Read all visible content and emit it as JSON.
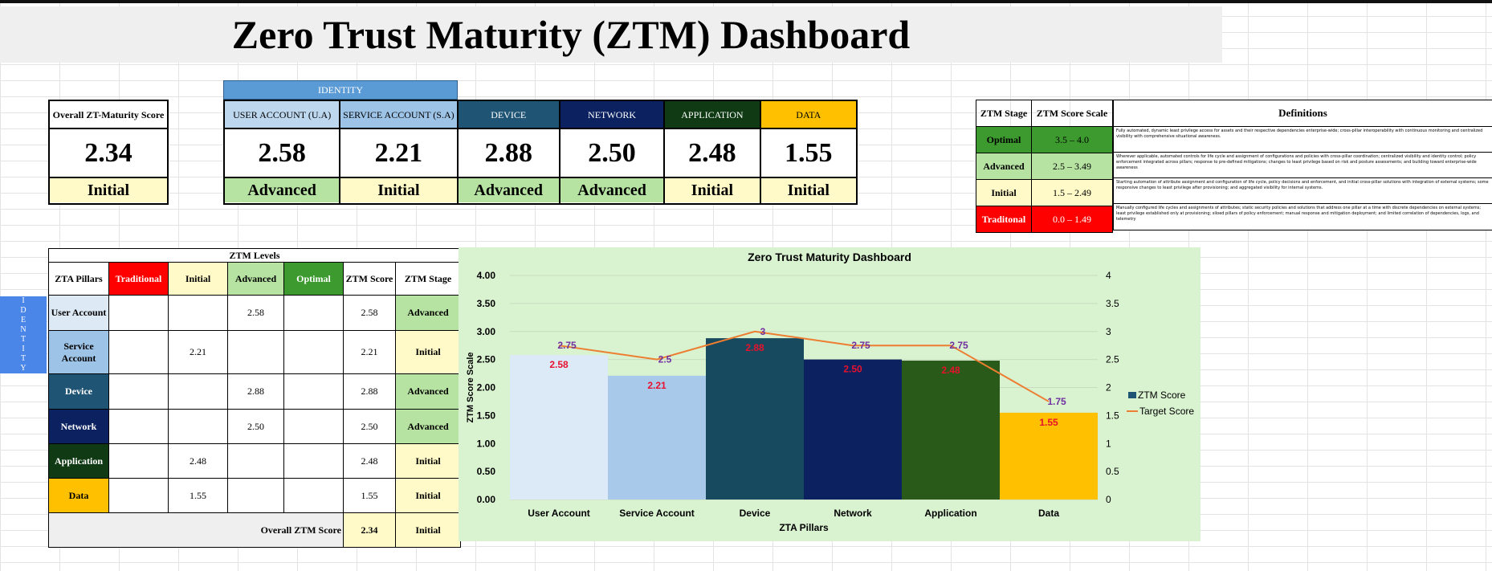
{
  "title": "Zero Trust Maturity (ZTM) Dashboard",
  "overall": {
    "label": "Overall ZT-Maturity Score",
    "score": "2.34",
    "stage": "Initial"
  },
  "identity_group": "IDENTITY",
  "pillars": [
    {
      "header": "USER ACCOUNT (U.A)",
      "score": "2.58",
      "stage": "Advanced",
      "header_bg": "#bdd7ee",
      "header_fg": "#000000",
      "stage_bg": "#b6e3a1"
    },
    {
      "header": "SERVICE ACCOUNT (S.A)",
      "score": "2.21",
      "stage": "Initial",
      "header_bg": "#9dc3e6",
      "header_fg": "#000000",
      "stage_bg": "#fffac8"
    },
    {
      "header": "DEVICE",
      "score": "2.88",
      "stage": "Advanced",
      "header_bg": "#1f5474",
      "header_fg": "#ffffff",
      "stage_bg": "#b6e3a1"
    },
    {
      "header": "NETWORK",
      "score": "2.50",
      "stage": "Advanced",
      "header_bg": "#0b2160",
      "header_fg": "#ffffff",
      "stage_bg": "#b6e3a1"
    },
    {
      "header": "APPLICATION",
      "score": "2.48",
      "stage": "Initial",
      "header_bg": "#0f3a14",
      "header_fg": "#ffffff",
      "stage_bg": "#fffac8"
    },
    {
      "header": "DATA",
      "score": "1.55",
      "stage": "Initial",
      "header_bg": "#ffc000",
      "header_fg": "#000000",
      "stage_bg": "#fffac8"
    }
  ],
  "stage_scale": {
    "headers": [
      "ZTM Stage",
      "ZTM Score Scale"
    ],
    "rows": [
      {
        "stage": "Optimal",
        "range": "3.5 –  4.0",
        "bg": "#3c9a2e",
        "fg": "#000000"
      },
      {
        "stage": "Advanced",
        "range": "2.5 – 3.49",
        "bg": "#b6e3a1",
        "fg": "#000000"
      },
      {
        "stage": "Initial",
        "range": "1.5 – 2.49",
        "bg": "#fffac8",
        "fg": "#000000"
      },
      {
        "stage": "Traditonal",
        "range": "0.0 – 1.49",
        "bg": "#ff0000",
        "fg": "#ffffff"
      }
    ]
  },
  "definitions": {
    "header": "Definitions",
    "rows": [
      "Fully automated, dynamic least privilege access for assets and their respective dependencies enterprise-wide; cross-pillar interoperability with continuous monitoring and centralized visibility with comprehensive situational awareness.",
      "Wherever applicable, automated controls for life cycle and assignment of configurations and policies with cross-pillar coordination; centralized visibility and identity control; policy enforcement integrated across pillars; response to pre-defined mitigations; changes to least privilege based on risk and posture assessments; and building toward enterprise-wide awareness",
      "Starting automation of attribute assignment and configuration of life cycle, policy decisions and enforcement, and initial cross-pillar solutions with integration of external systems; some responsive changes to least privilege after provisioning; and aggregated visibility for internal systems.",
      "Manually configured life cycles and assignments of attributes; static security policies and solutions that address one pillar at a time with discrete dependencies on external systems; least privilege established only at provisioning; siloed pillars of policy enforcement; manual response and mitigation deployment; and limited correlation of dependencies, logs, and telemetry"
    ]
  },
  "levels_table": {
    "caption": "ZTM  Levels",
    "headers": [
      "ZTA Pillars",
      "Traditional",
      "Initial",
      "Advanced",
      "Optimal",
      "ZTM Score",
      "ZTM Stage"
    ],
    "rows": [
      {
        "pillar": "User Account",
        "traditional": "",
        "initial": "",
        "advanced": "2.58",
        "optimal": "",
        "score": "2.58",
        "stage": "Advanced",
        "bg": "#ddeaf6",
        "fg": "#000000",
        "stage_bg": "#b6e3a1"
      },
      {
        "pillar": "Service Account",
        "traditional": "",
        "initial": "2.21",
        "advanced": "",
        "optimal": "",
        "score": "2.21",
        "stage": "Initial",
        "bg": "#9dc3e6",
        "fg": "#000000",
        "stage_bg": "#fffac8"
      },
      {
        "pillar": "Device",
        "traditional": "",
        "initial": "",
        "advanced": "2.88",
        "optimal": "",
        "score": "2.88",
        "stage": "Advanced",
        "bg": "#1f5474",
        "fg": "#ffffff",
        "stage_bg": "#b6e3a1"
      },
      {
        "pillar": "Network",
        "traditional": "",
        "initial": "",
        "advanced": "2.50",
        "optimal": "",
        "score": "2.50",
        "stage": "Advanced",
        "bg": "#0b2160",
        "fg": "#ffffff",
        "stage_bg": "#b6e3a1"
      },
      {
        "pillar": "Application",
        "traditional": "",
        "initial": "2.48",
        "advanced": "",
        "optimal": "",
        "score": "2.48",
        "stage": "Initial",
        "bg": "#0f3a14",
        "fg": "#ffffff",
        "stage_bg": "#fffac8"
      },
      {
        "pillar": "Data",
        "traditional": "",
        "initial": "1.55",
        "advanced": "",
        "optimal": "",
        "score": "1.55",
        "stage": "Initial",
        "bg": "#ffc000",
        "fg": "#000000",
        "stage_bg": "#fffac8"
      }
    ],
    "overall_label": "Overall ZTM Score",
    "overall_score": "2.34",
    "overall_stage": "Initial",
    "level_colors": {
      "traditional": "#ff0000",
      "initial": "#fffac8",
      "advanced": "#b6e3a1",
      "optimal": "#3c9a2e"
    }
  },
  "identity_side": [
    "I",
    "D",
    "E",
    "N",
    "T",
    "I",
    "T",
    "Y"
  ],
  "chart_data": {
    "type": "bar",
    "title": "Zero Trust Maturity Dashboard",
    "xlabel": "ZTA Pillars",
    "ylabel": "ZTM Score Scale",
    "categories": [
      "User Account",
      "Service Account",
      "Device",
      "Network",
      "Application",
      "Data"
    ],
    "ylim": [
      0,
      4
    ],
    "y_ticks_left": [
      "0.00",
      "0.50",
      "1.00",
      "1.50",
      "2.00",
      "2.50",
      "3.00",
      "3.50",
      "4.00"
    ],
    "y_ticks_right": [
      "0",
      "0.5",
      "1",
      "1.5",
      "2",
      "2.5",
      "3",
      "3.5",
      "4"
    ],
    "series": [
      {
        "name": "ZTM Score",
        "kind": "bar",
        "values": [
          2.58,
          2.21,
          2.88,
          2.5,
          2.48,
          1.55
        ],
        "labels": [
          "2.58",
          "2.21",
          "2.88",
          "2.50",
          "2.48",
          "1.55"
        ],
        "colors": [
          "#dce9f7",
          "#a9c9ea",
          "#174a5e",
          "#0b2160",
          "#2a5a1a",
          "#ffc000"
        ],
        "legend_color": "#1f5474"
      },
      {
        "name": "Target Score",
        "kind": "line",
        "values": [
          2.75,
          2.5,
          3,
          2.75,
          2.75,
          1.75
        ],
        "labels": [
          "2.75",
          "2.5",
          "3",
          "2.75",
          "2.75",
          "1.75"
        ],
        "color": "#ed7d31"
      }
    ],
    "grid": true,
    "legend_position": "right"
  }
}
